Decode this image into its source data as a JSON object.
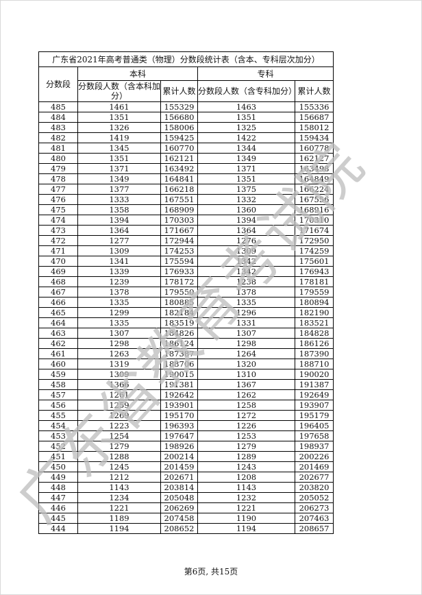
{
  "table": {
    "title": "广东省2021年高考普通类（物理）分数段统计表（含本、专科层次加分）",
    "col_score": "分数段",
    "group_benke": "本科",
    "group_zhuanke": "专科",
    "benke_count": "分数段人数（含本科加分）",
    "benke_cum": "累计人数",
    "zhuanke_count": "分数段人数（含专科加分）",
    "zhuanke_cum": "累计人数",
    "rows": [
      [
        "485",
        "1461",
        "155329",
        "1463",
        "155336"
      ],
      [
        "484",
        "1351",
        "156680",
        "1351",
        "156687"
      ],
      [
        "483",
        "1326",
        "158006",
        "1325",
        "158012"
      ],
      [
        "482",
        "1419",
        "159425",
        "1422",
        "159434"
      ],
      [
        "481",
        "1345",
        "160770",
        "1344",
        "160778"
      ],
      [
        "480",
        "1351",
        "162121",
        "1349",
        "162127"
      ],
      [
        "479",
        "1371",
        "163492",
        "1371",
        "163498"
      ],
      [
        "478",
        "1349",
        "164841",
        "1351",
        "164849"
      ],
      [
        "477",
        "1377",
        "166218",
        "1375",
        "166224"
      ],
      [
        "476",
        "1333",
        "167551",
        "1332",
        "167556"
      ],
      [
        "475",
        "1358",
        "168909",
        "1360",
        "168916"
      ],
      [
        "474",
        "1394",
        "170303",
        "1394",
        "170310"
      ],
      [
        "473",
        "1364",
        "171667",
        "1364",
        "171674"
      ],
      [
        "472",
        "1277",
        "172944",
        "1276",
        "172950"
      ],
      [
        "471",
        "1309",
        "174253",
        "1309",
        "174259"
      ],
      [
        "470",
        "1341",
        "175594",
        "1342",
        "175601"
      ],
      [
        "469",
        "1339",
        "176933",
        "1342",
        "176943"
      ],
      [
        "468",
        "1239",
        "178172",
        "1238",
        "178181"
      ],
      [
        "467",
        "1378",
        "179550",
        "1378",
        "179559"
      ],
      [
        "466",
        "1335",
        "180885",
        "1335",
        "180894"
      ],
      [
        "465",
        "1299",
        "182184",
        "1296",
        "182190"
      ],
      [
        "464",
        "1335",
        "183519",
        "1331",
        "183521"
      ],
      [
        "463",
        "1307",
        "184826",
        "1307",
        "184828"
      ],
      [
        "462",
        "1298",
        "186124",
        "1298",
        "186126"
      ],
      [
        "461",
        "1263",
        "187387",
        "1264",
        "187390"
      ],
      [
        "460",
        "1319",
        "188706",
        "1320",
        "188710"
      ],
      [
        "459",
        "1309",
        "190015",
        "1310",
        "190020"
      ],
      [
        "458",
        "1366",
        "191381",
        "1367",
        "191387"
      ],
      [
        "457",
        "1261",
        "192642",
        "1262",
        "192649"
      ],
      [
        "456",
        "1259",
        "193901",
        "1258",
        "193907"
      ],
      [
        "455",
        "1269",
        "195170",
        "1272",
        "195179"
      ],
      [
        "454",
        "1223",
        "196393",
        "1226",
        "196405"
      ],
      [
        "453",
        "1254",
        "197647",
        "1253",
        "197658"
      ],
      [
        "452",
        "1279",
        "198926",
        "1279",
        "198937"
      ],
      [
        "451",
        "1288",
        "200214",
        "1289",
        "200226"
      ],
      [
        "450",
        "1245",
        "201459",
        "1243",
        "201469"
      ],
      [
        "449",
        "1212",
        "202671",
        "1208",
        "202677"
      ],
      [
        "448",
        "1143",
        "203814",
        "1143",
        "203820"
      ],
      [
        "447",
        "1234",
        "205048",
        "1232",
        "205052"
      ],
      [
        "446",
        "1221",
        "206269",
        "1221",
        "206273"
      ],
      [
        "445",
        "1189",
        "207458",
        "1190",
        "207463"
      ],
      [
        "444",
        "1194",
        "208652",
        "1194",
        "208657"
      ]
    ]
  },
  "footer": "第6页, 共15页",
  "watermark": "广东省教育考试院"
}
